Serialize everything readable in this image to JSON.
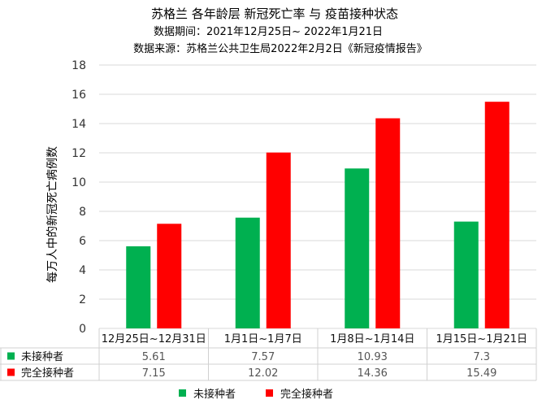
{
  "chart_data": {
    "type": "bar",
    "title": "苏格兰 各年龄层 新冠死亡率 与 疫苗接种状态",
    "subtitle": "数据期间：2021年12月25日~ 2022年1月21日",
    "source": "数据来源：苏格兰公共卫生局2022年2月2日《新冠疫情报告》",
    "ylabel": "每万人中的新冠死亡病例数",
    "xlabel": "",
    "ylim": [
      0,
      18
    ],
    "yticks": [
      0,
      2,
      4,
      6,
      8,
      10,
      12,
      14,
      16,
      18
    ],
    "grid": true,
    "legend_position": "bottom",
    "categories": [
      "12月25日~12月31日",
      "1月1日~1月7日",
      "1月8日~1月14日",
      "1月15日~1月21日"
    ],
    "series": [
      {
        "name": "未接种者",
        "color": "#00b050",
        "values": [
          5.61,
          7.57,
          10.93,
          7.3
        ]
      },
      {
        "name": "完全接种者",
        "color": "#ff0000",
        "values": [
          7.15,
          12.02,
          14.36,
          15.49
        ]
      }
    ],
    "table": {
      "rows": [
        {
          "label": "未接种者",
          "values": [
            "5.61",
            "7.57",
            "10.93",
            "7.3"
          ]
        },
        {
          "label": "完全接种者",
          "values": [
            "7.15",
            "12.02",
            "14.36",
            "15.49"
          ]
        }
      ]
    }
  }
}
